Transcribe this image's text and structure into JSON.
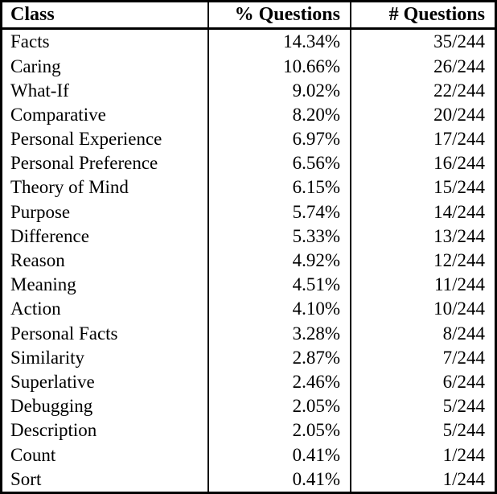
{
  "table": {
    "headers": {
      "class": "Class",
      "pct": "% Questions",
      "count": "# Questions"
    },
    "rows": [
      {
        "class": "Facts",
        "pct": "14.34%",
        "count": "35/244"
      },
      {
        "class": "Caring",
        "pct": "10.66%",
        "count": "26/244"
      },
      {
        "class": "What-If",
        "pct": "9.02%",
        "count": "22/244"
      },
      {
        "class": "Comparative",
        "pct": "8.20%",
        "count": "20/244"
      },
      {
        "class": "Personal Experience",
        "pct": "6.97%",
        "count": "17/244"
      },
      {
        "class": "Personal Preference",
        "pct": "6.56%",
        "count": "16/244"
      },
      {
        "class": "Theory of Mind",
        "pct": "6.15%",
        "count": "15/244"
      },
      {
        "class": "Purpose",
        "pct": "5.74%",
        "count": "14/244"
      },
      {
        "class": "Difference",
        "pct": "5.33%",
        "count": "13/244"
      },
      {
        "class": "Reason",
        "pct": "4.92%",
        "count": "12/244"
      },
      {
        "class": "Meaning",
        "pct": "4.51%",
        "count": "11/244"
      },
      {
        "class": "Action",
        "pct": "4.10%",
        "count": "10/244"
      },
      {
        "class": "Personal Facts",
        "pct": "3.28%",
        "count": "8/244"
      },
      {
        "class": "Similarity",
        "pct": "2.87%",
        "count": "7/244"
      },
      {
        "class": "Superlative",
        "pct": "2.46%",
        "count": "6/244"
      },
      {
        "class": "Debugging",
        "pct": "2.05%",
        "count": "5/244"
      },
      {
        "class": "Description",
        "pct": "2.05%",
        "count": "5/244"
      },
      {
        "class": "Count",
        "pct": "0.41%",
        "count": "1/244"
      },
      {
        "class": "Sort",
        "pct": "0.41%",
        "count": "1/244"
      }
    ],
    "colors": {
      "border": "#000000",
      "text": "#000000",
      "background": "#ffffff"
    }
  }
}
